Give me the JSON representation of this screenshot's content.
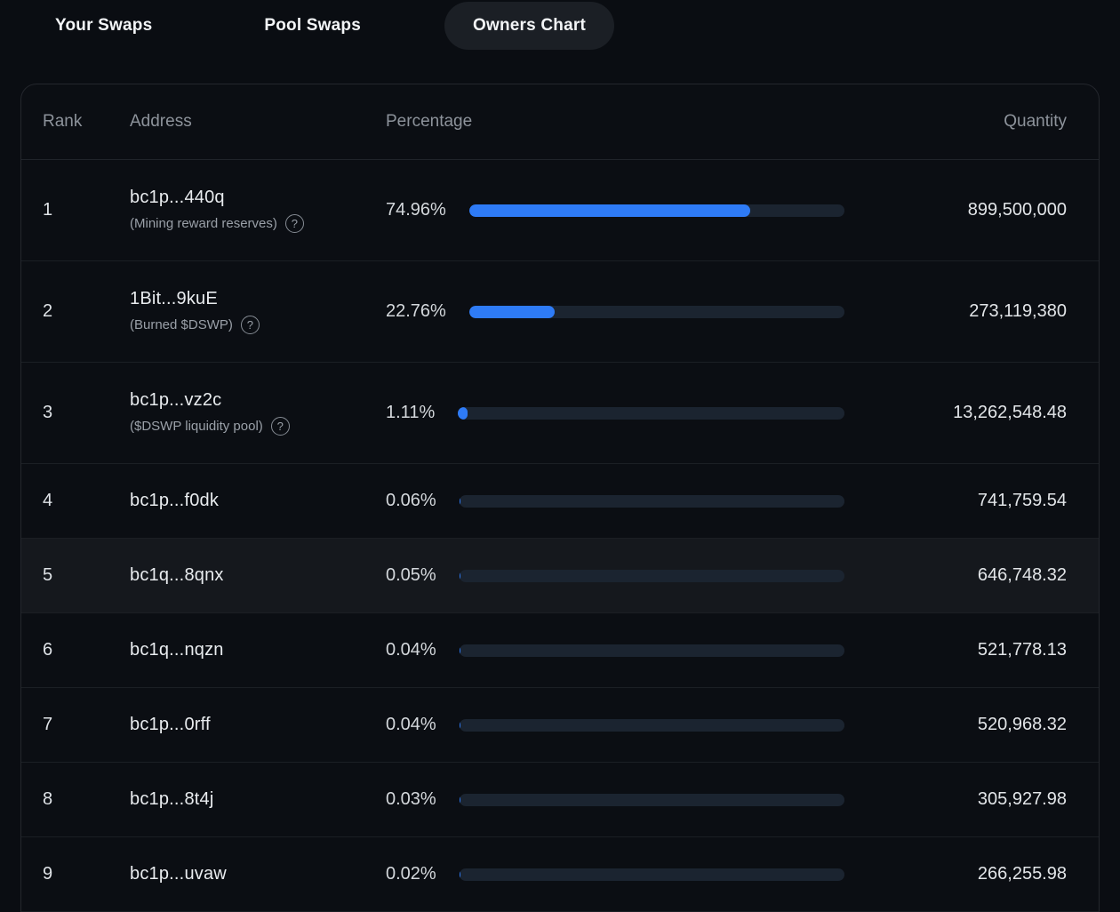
{
  "tabs": [
    {
      "label": "Your Swaps",
      "active": false
    },
    {
      "label": "Pool Swaps",
      "active": false
    },
    {
      "label": "Owners Chart",
      "active": true
    }
  ],
  "table": {
    "columns": {
      "rank": "Rank",
      "address": "Address",
      "percentage": "Percentage",
      "quantity": "Quantity"
    },
    "rows": [
      {
        "rank": "1",
        "address": "bc1p...440q",
        "sublabel": "(Mining reward reserves)",
        "has_info": true,
        "percentage": "74.96%",
        "percent_value": 74.96,
        "quantity": "899,500,000",
        "highlighted": false
      },
      {
        "rank": "2",
        "address": "1Bit...9kuE",
        "sublabel": "(Burned $DSWP)",
        "has_info": true,
        "percentage": "22.76%",
        "percent_value": 22.76,
        "quantity": "273,119,380",
        "highlighted": false
      },
      {
        "rank": "3",
        "address": "bc1p...vz2c",
        "sublabel": "($DSWP liquidity pool)",
        "has_info": true,
        "percentage": "1.11%",
        "percent_value": 1.11,
        "quantity": "13,262,548.48",
        "highlighted": false
      },
      {
        "rank": "4",
        "address": "bc1p...f0dk",
        "sublabel": null,
        "has_info": false,
        "percentage": "0.06%",
        "percent_value": 0.06,
        "quantity": "741,759.54",
        "highlighted": false
      },
      {
        "rank": "5",
        "address": "bc1q...8qnx",
        "sublabel": null,
        "has_info": false,
        "percentage": "0.05%",
        "percent_value": 0.05,
        "quantity": "646,748.32",
        "highlighted": true
      },
      {
        "rank": "6",
        "address": "bc1q...nqzn",
        "sublabel": null,
        "has_info": false,
        "percentage": "0.04%",
        "percent_value": 0.04,
        "quantity": "521,778.13",
        "highlighted": false
      },
      {
        "rank": "7",
        "address": "bc1p...0rff",
        "sublabel": null,
        "has_info": false,
        "percentage": "0.04%",
        "percent_value": 0.04,
        "quantity": "520,968.32",
        "highlighted": false
      },
      {
        "rank": "8",
        "address": "bc1p...8t4j",
        "sublabel": null,
        "has_info": false,
        "percentage": "0.03%",
        "percent_value": 0.03,
        "quantity": "305,927.98",
        "highlighted": false
      },
      {
        "rank": "9",
        "address": "bc1p...uvaw",
        "sublabel": null,
        "has_info": false,
        "percentage": "0.02%",
        "percent_value": 0.02,
        "quantity": "266,255.98",
        "highlighted": false
      }
    ]
  },
  "icons": {
    "info": "?"
  },
  "colors": {
    "accent_blue": "#2e7bf6",
    "bar_track": "#1b2430",
    "background": "#0a0d12",
    "highlight_row": "#15181d"
  }
}
